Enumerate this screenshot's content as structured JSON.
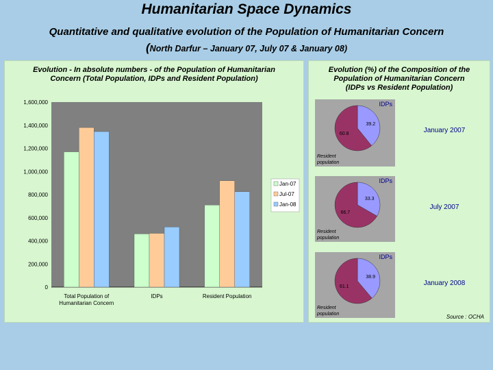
{
  "header": {
    "title": "Humanitarian Space Dynamics",
    "subtitle": "Quantitative and qualitative evolution of the Population of Humanitarian Concern",
    "subtitle2_paren": "(",
    "subtitle2_rest": "North Darfur – January 07, July 07 & January 08)"
  },
  "left_panel": {
    "title_line1": "Evolution - In absolute numbers - of the Population of Humanitarian",
    "title_line2": "Concern (Total Population, IDPs and Resident Population)"
  },
  "right_panel": {
    "title_line1": "Evolution (%) of the Composition of the",
    "title_line2": "Population of Humanitarian Concern",
    "title_line3": "(IDPs vs Resident Population)",
    "source": "Source : OCHA"
  },
  "colors": {
    "background": "#a9cde6",
    "panel": "#d8f6d0",
    "plot_area": "#808080",
    "jan07": "#ccffcc",
    "jul07": "#ffcc99",
    "jan08": "#99ccff",
    "pie_idps": "#9999ff",
    "pie_resident": "#993366"
  },
  "chart_data": [
    {
      "type": "bar",
      "title": "",
      "categories": [
        "Total Population of Humanitarian Concern",
        "IDPs",
        "Resident Population"
      ],
      "category_labels": [
        [
          "Total Population of",
          "Humanitarian Concern"
        ],
        [
          "IDPs"
        ],
        [
          "Resident Population"
        ]
      ],
      "series": [
        {
          "name": "Jan-07",
          "values": [
            1170000,
            460000,
            710000
          ]
        },
        {
          "name": "Jul-07",
          "values": [
            1380000,
            465000,
            920000
          ]
        },
        {
          "name": "Jan-08",
          "values": [
            1345000,
            520000,
            825000
          ]
        }
      ],
      "ylim": [
        0,
        1600000
      ],
      "yticks": [
        0,
        200000,
        400000,
        600000,
        800000,
        1000000,
        1200000,
        1400000,
        1600000
      ],
      "ytick_labels": [
        "0",
        "200,000",
        "400,000",
        "600,000",
        "800,000",
        "1,000,000",
        "1,200,000",
        "1,400,000",
        "1,600,000"
      ],
      "legend_position": "right",
      "grid": false
    },
    {
      "type": "pie",
      "period_label": "January 2007",
      "slice_labels": [
        "IDPs",
        "Resident population"
      ],
      "values": [
        39.2,
        60.8
      ],
      "value_labels": [
        "39.2",
        "60.8"
      ]
    },
    {
      "type": "pie",
      "period_label": "July 2007",
      "slice_labels": [
        "IDPs",
        "Resident population"
      ],
      "values": [
        33.3,
        66.7
      ],
      "value_labels": [
        "33.3",
        "66.7"
      ]
    },
    {
      "type": "pie",
      "period_label": "January 2008",
      "slice_labels": [
        "IDPs",
        "Resident population"
      ],
      "values": [
        38.9,
        61.1
      ],
      "value_labels": [
        "38.9",
        "61.1"
      ]
    }
  ]
}
